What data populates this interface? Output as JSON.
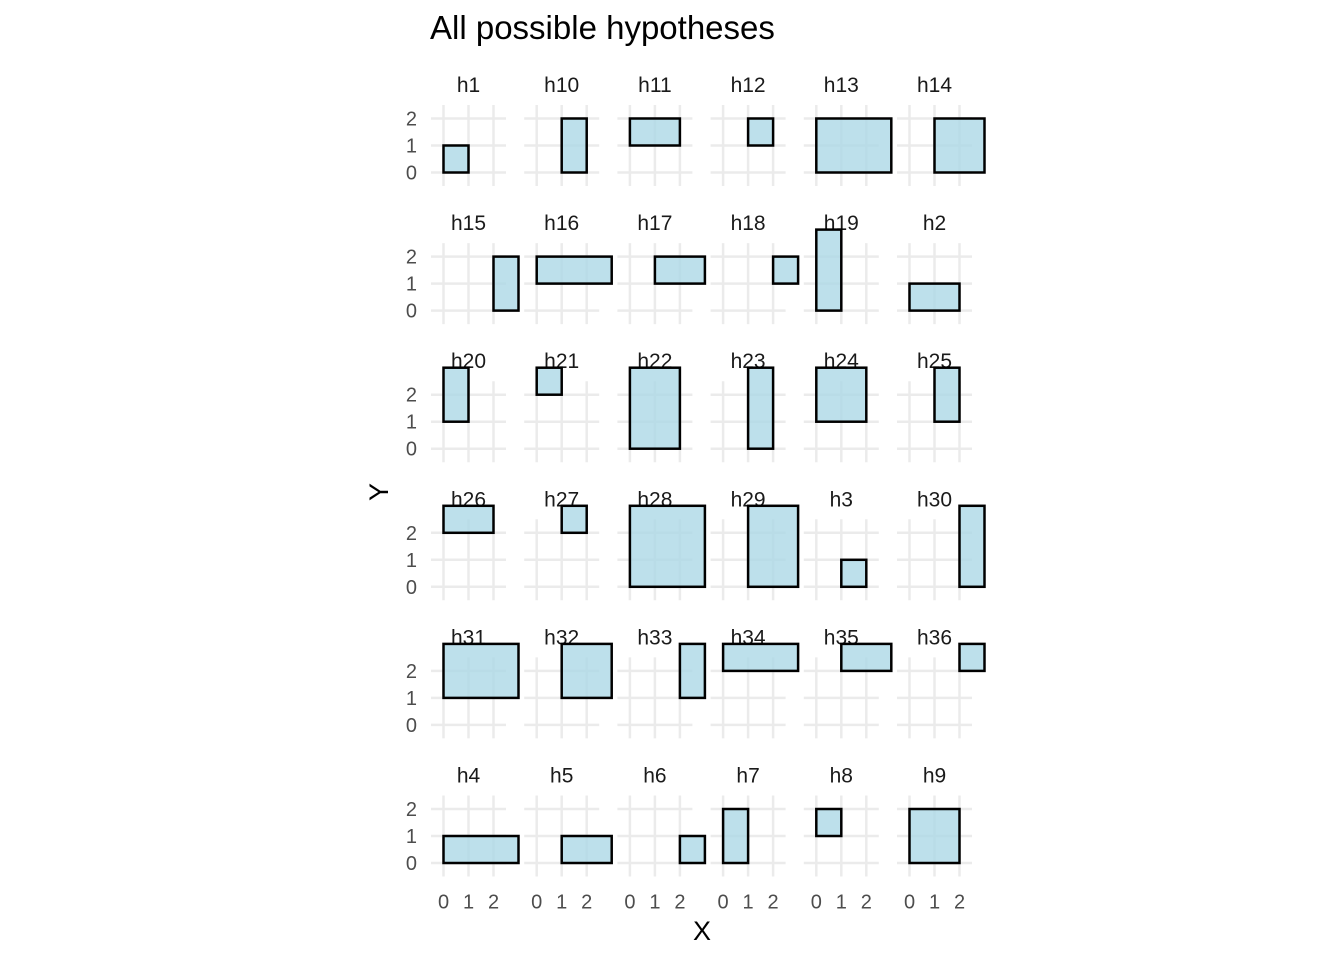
{
  "chart_data": {
    "type": "faceted-rectangles",
    "title": "All possible hypotheses",
    "xlabel": "X",
    "ylabel": "Y",
    "x_ticks": [
      "0",
      "1",
      "2"
    ],
    "y_ticks": [
      "0",
      "1",
      "2"
    ],
    "xlim": [
      -0.5,
      2.5
    ],
    "ylim": [
      -0.5,
      2.5
    ],
    "grid": true,
    "fill_color": "#add8e6",
    "stroke_color": "#000000",
    "panels": [
      {
        "label": "h1",
        "rect": {
          "x1": 0,
          "x2": 1,
          "y1": 0,
          "y2": 1
        }
      },
      {
        "label": "h10",
        "rect": {
          "x1": 1,
          "x2": 2,
          "y1": 0,
          "y2": 2
        }
      },
      {
        "label": "h11",
        "rect": {
          "x1": 0,
          "x2": 2,
          "y1": 1,
          "y2": 2
        }
      },
      {
        "label": "h12",
        "rect": {
          "x1": 1,
          "x2": 2,
          "y1": 1,
          "y2": 2
        }
      },
      {
        "label": "h13",
        "rect": {
          "x1": 0,
          "x2": 3,
          "y1": 0,
          "y2": 2
        }
      },
      {
        "label": "h14",
        "rect": {
          "x1": 1,
          "x2": 3,
          "y1": 0,
          "y2": 2
        }
      },
      {
        "label": "h15",
        "rect": {
          "x1": 2,
          "x2": 3,
          "y1": 0,
          "y2": 2
        }
      },
      {
        "label": "h16",
        "rect": {
          "x1": 0,
          "x2": 3,
          "y1": 1,
          "y2": 2
        }
      },
      {
        "label": "h17",
        "rect": {
          "x1": 1,
          "x2": 3,
          "y1": 1,
          "y2": 2
        }
      },
      {
        "label": "h18",
        "rect": {
          "x1": 2,
          "x2": 3,
          "y1": 1,
          "y2": 2
        }
      },
      {
        "label": "h19",
        "rect": {
          "x1": 0,
          "x2": 1,
          "y1": 0,
          "y2": 3
        }
      },
      {
        "label": "h2",
        "rect": {
          "x1": 0,
          "x2": 2,
          "y1": 0,
          "y2": 1
        }
      },
      {
        "label": "h20",
        "rect": {
          "x1": 0,
          "x2": 1,
          "y1": 1,
          "y2": 3
        }
      },
      {
        "label": "h21",
        "rect": {
          "x1": 0,
          "x2": 1,
          "y1": 2,
          "y2": 3
        }
      },
      {
        "label": "h22",
        "rect": {
          "x1": 0,
          "x2": 2,
          "y1": 0,
          "y2": 3
        }
      },
      {
        "label": "h23",
        "rect": {
          "x1": 1,
          "x2": 2,
          "y1": 0,
          "y2": 3
        }
      },
      {
        "label": "h24",
        "rect": {
          "x1": 0,
          "x2": 2,
          "y1": 1,
          "y2": 3
        }
      },
      {
        "label": "h25",
        "rect": {
          "x1": 1,
          "x2": 2,
          "y1": 1,
          "y2": 3
        }
      },
      {
        "label": "h26",
        "rect": {
          "x1": 0,
          "x2": 2,
          "y1": 2,
          "y2": 3
        }
      },
      {
        "label": "h27",
        "rect": {
          "x1": 1,
          "x2": 2,
          "y1": 2,
          "y2": 3
        }
      },
      {
        "label": "h28",
        "rect": {
          "x1": 0,
          "x2": 3,
          "y1": 0,
          "y2": 3
        }
      },
      {
        "label": "h29",
        "rect": {
          "x1": 1,
          "x2": 3,
          "y1": 0,
          "y2": 3
        }
      },
      {
        "label": "h3",
        "rect": {
          "x1": 1,
          "x2": 2,
          "y1": 0,
          "y2": 1
        }
      },
      {
        "label": "h30",
        "rect": {
          "x1": 2,
          "x2": 3,
          "y1": 0,
          "y2": 3
        }
      },
      {
        "label": "h31",
        "rect": {
          "x1": 0,
          "x2": 3,
          "y1": 1,
          "y2": 3
        }
      },
      {
        "label": "h32",
        "rect": {
          "x1": 1,
          "x2": 3,
          "y1": 1,
          "y2": 3
        }
      },
      {
        "label": "h33",
        "rect": {
          "x1": 2,
          "x2": 3,
          "y1": 1,
          "y2": 3
        }
      },
      {
        "label": "h34",
        "rect": {
          "x1": 0,
          "x2": 3,
          "y1": 2,
          "y2": 3
        }
      },
      {
        "label": "h35",
        "rect": {
          "x1": 1,
          "x2": 3,
          "y1": 2,
          "y2": 3
        }
      },
      {
        "label": "h36",
        "rect": {
          "x1": 2,
          "x2": 3,
          "y1": 2,
          "y2": 3
        }
      },
      {
        "label": "h4",
        "rect": {
          "x1": 0,
          "x2": 3,
          "y1": 0,
          "y2": 1
        }
      },
      {
        "label": "h5",
        "rect": {
          "x1": 1,
          "x2": 3,
          "y1": 0,
          "y2": 1
        }
      },
      {
        "label": "h6",
        "rect": {
          "x1": 2,
          "x2": 3,
          "y1": 0,
          "y2": 1
        }
      },
      {
        "label": "h7",
        "rect": {
          "x1": 0,
          "x2": 1,
          "y1": 0,
          "y2": 2
        }
      },
      {
        "label": "h8",
        "rect": {
          "x1": 0,
          "x2": 1,
          "y1": 1,
          "y2": 2
        }
      },
      {
        "label": "h9",
        "rect": {
          "x1": 0,
          "x2": 2,
          "y1": 0,
          "y2": 2
        }
      }
    ]
  }
}
